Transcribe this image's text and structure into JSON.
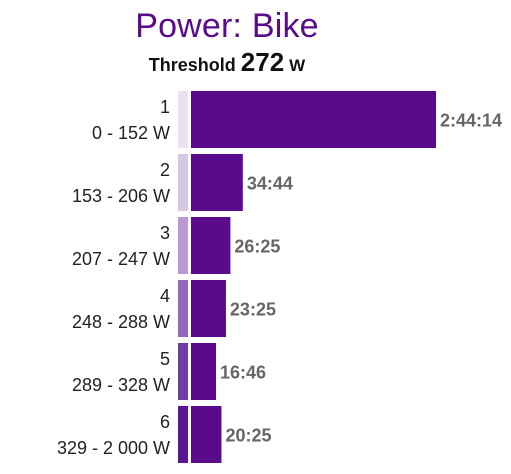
{
  "chart_data": {
    "type": "bar",
    "orientation": "horizontal",
    "title": "Power: Bike",
    "threshold": {
      "label": "Threshold",
      "value": "272",
      "unit": "W"
    },
    "zones": [
      {
        "zone": "1",
        "range": "0 - 152 W",
        "time": "2:44:14",
        "seconds": 9854,
        "indicator_color": "#eae2f1"
      },
      {
        "zone": "2",
        "range": "153 - 206 W",
        "time": "34:44",
        "seconds": 2084,
        "indicator_color": "#d6c7e4"
      },
      {
        "zone": "3",
        "range": "207 - 247 W",
        "time": "26:25",
        "seconds": 1585,
        "indicator_color": "#b899d2"
      },
      {
        "zone": "4",
        "range": "248 - 288 W",
        "time": "23:25",
        "seconds": 1405,
        "indicator_color": "#9268bc"
      },
      {
        "zone": "5",
        "range": "289 - 328 W",
        "time": "16:46",
        "seconds": 1006,
        "indicator_color": "#703ca6"
      },
      {
        "zone": "6",
        "range": "329 - 2 000 W",
        "time": "20:25",
        "seconds": 1225,
        "indicator_color": "#5a1492"
      }
    ],
    "bar_color": "#5a0b8c",
    "value_label_color": "#666666",
    "grid": false
  }
}
